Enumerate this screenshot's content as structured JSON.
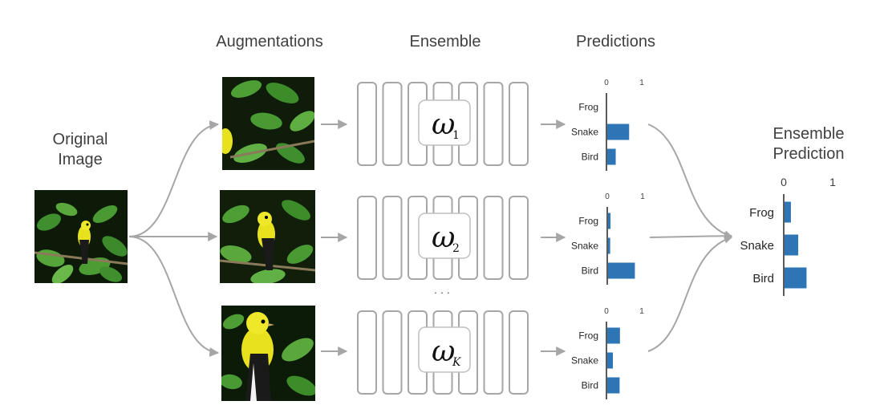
{
  "headers": {
    "original_line1": "Original",
    "original_line2": "Image",
    "augmentations": "Augmentations",
    "ensemble": "Ensemble",
    "predictions": "Predictions",
    "ensemble_prediction_line1": "Ensemble",
    "ensemble_prediction_line2": "Prediction"
  },
  "ensemble_members": [
    {
      "symbol": "ω",
      "subscript": "1"
    },
    {
      "symbol": "ω",
      "subscript": "2"
    },
    {
      "symbol": "ω",
      "subscript": "K"
    }
  ],
  "ellipsis": "· · ·",
  "colors": {
    "bar": "#2e75b6",
    "arrow": "#a6a6a6",
    "box_stroke": "#a6a6a6",
    "text": "#404040"
  },
  "chart_data": [
    {
      "type": "bar",
      "orientation": "horizontal",
      "categories": [
        "Frog",
        "Snake",
        "Bird"
      ],
      "values": [
        0.0,
        0.62,
        0.24
      ],
      "ticks": [
        "0",
        "1"
      ],
      "xlim": [
        0,
        1
      ]
    },
    {
      "type": "bar",
      "orientation": "horizontal",
      "categories": [
        "Frog",
        "Snake",
        "Bird"
      ],
      "values": [
        0.07,
        0.06,
        0.76
      ],
      "ticks": [
        "0",
        "1"
      ],
      "xlim": [
        0,
        1
      ]
    },
    {
      "type": "bar",
      "orientation": "horizontal",
      "categories": [
        "Frog",
        "Snake",
        "Bird"
      ],
      "values": [
        0.36,
        0.16,
        0.35
      ],
      "ticks": [
        "0",
        "1"
      ],
      "xlim": [
        0,
        1
      ]
    },
    {
      "type": "bar",
      "orientation": "horizontal",
      "categories": [
        "Frog",
        "Snake",
        "Bird"
      ],
      "values": [
        0.13,
        0.28,
        0.45
      ],
      "ticks": [
        "0",
        "1"
      ],
      "xlim": [
        0,
        1
      ]
    }
  ]
}
